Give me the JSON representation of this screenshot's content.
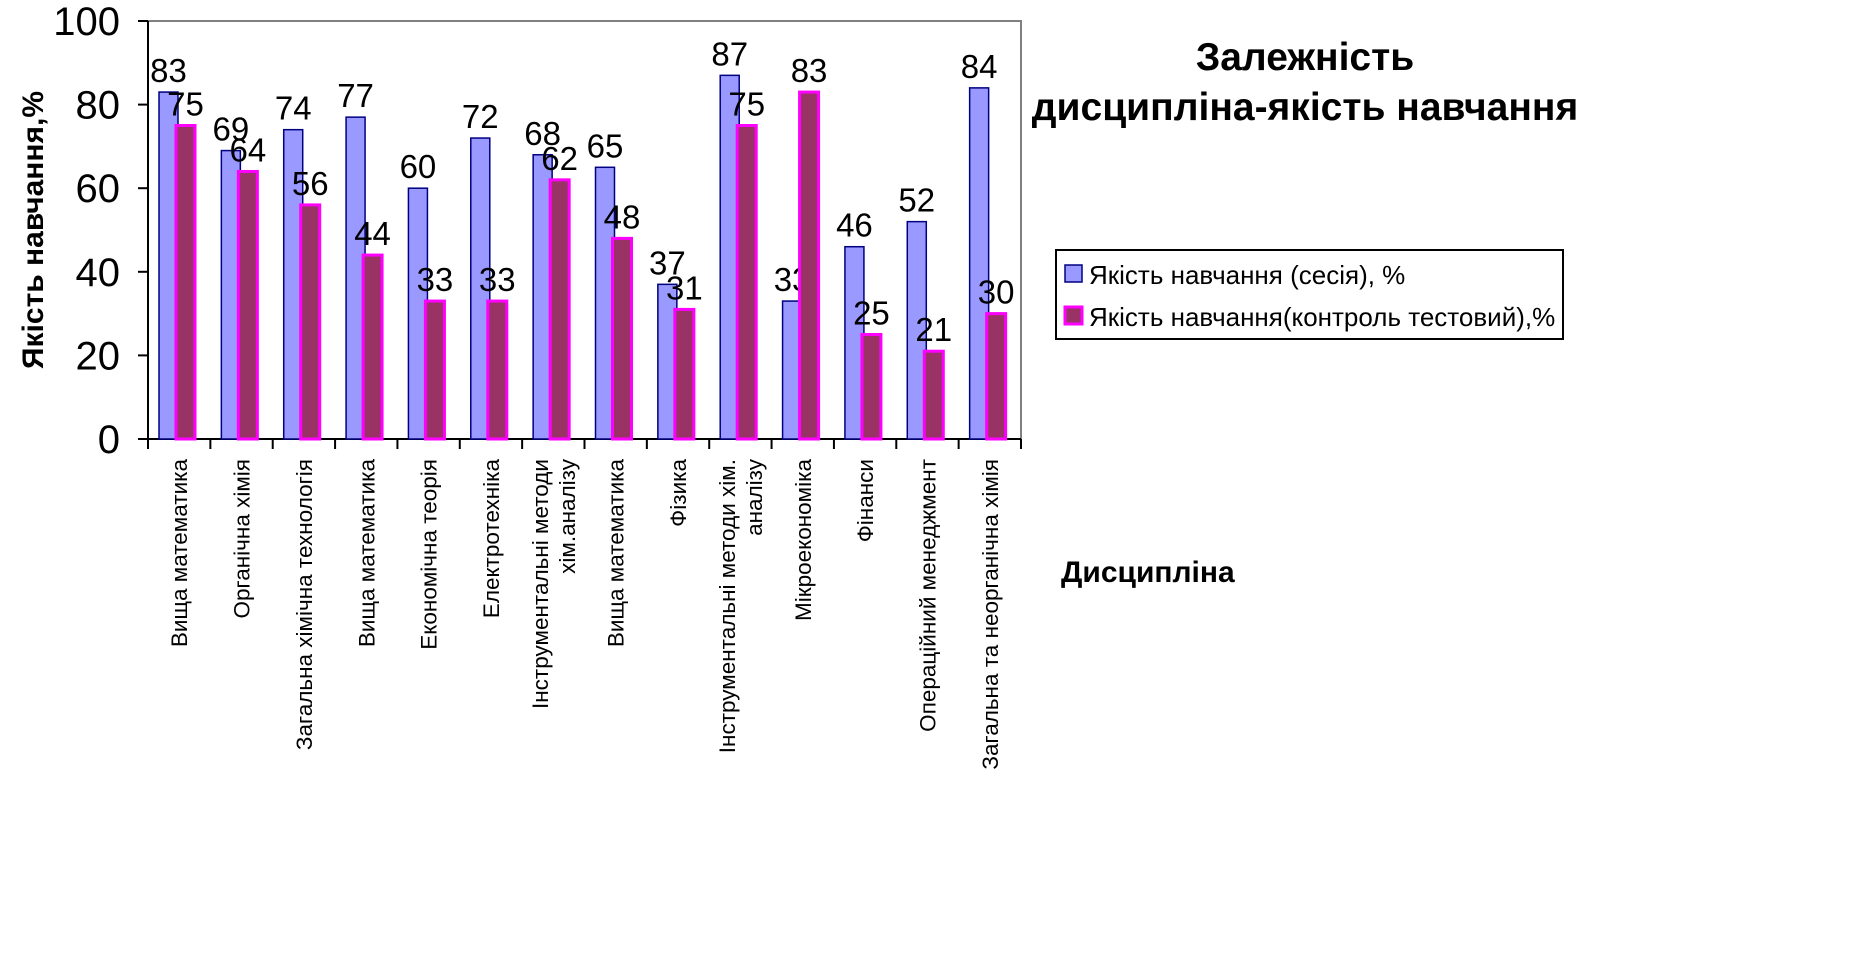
{
  "chart_data": {
    "type": "bar",
    "title": [
      "Залежність",
      "дисципліна-якість навчання"
    ],
    "ylabel": "Якість навчання,%",
    "xlabel": "Дисципліна",
    "ylim": [
      0,
      100
    ],
    "yticks": [
      0,
      20,
      40,
      60,
      80,
      100
    ],
    "grid": false,
    "legend_position": "right",
    "categories": [
      [
        "Вища математика"
      ],
      [
        "Органічна хімія"
      ],
      [
        "Загальна хімічна технологія"
      ],
      [
        "Вища математика"
      ],
      [
        "Економічна теорія"
      ],
      [
        "Електротехніка"
      ],
      [
        "Інструментальні методи",
        "хім.аналізу"
      ],
      [
        "Вища математика"
      ],
      [
        "Фізика"
      ],
      [
        "Інструментальні методи хім.",
        "аналізу"
      ],
      [
        "Мікроекономіка"
      ],
      [
        "Фінанси"
      ],
      [
        "Операційний менеджмент"
      ],
      [
        "Загальна та неорганічна хімія"
      ]
    ],
    "series": [
      {
        "name": "Якість навчання (сесія), %",
        "color": "#9999FF",
        "stroke": "#000080",
        "values": [
          83,
          69,
          74,
          77,
          60,
          72,
          68,
          65,
          37,
          87,
          33,
          46,
          52,
          84
        ]
      },
      {
        "name": "Якість навчання(контроль тестовий),%",
        "color": "#993366",
        "stroke": "#FF00FF",
        "values": [
          75,
          64,
          56,
          44,
          33,
          33,
          62,
          48,
          31,
          75,
          83,
          25,
          21,
          30
        ]
      }
    ]
  }
}
